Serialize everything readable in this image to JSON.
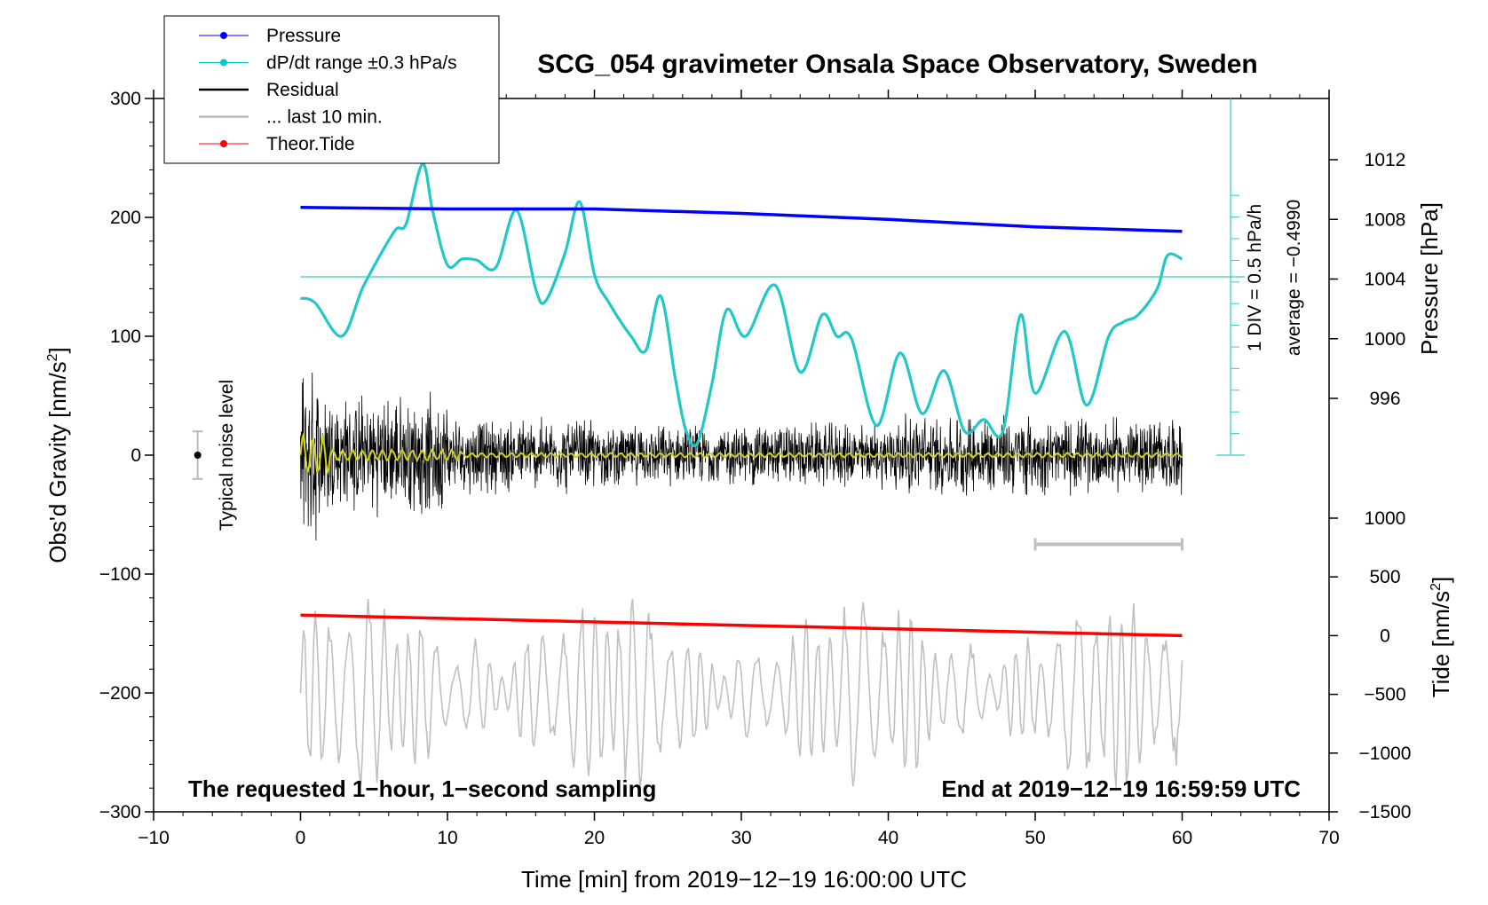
{
  "chart_data": {
    "type": "line",
    "title": "SCG_054 gravimeter Onsala Space Observatory, Sweden",
    "xlabel": "Time [min] from 2019−12−19 16:00:00 UTC",
    "ylabel_left": "Obs'd Gravity [nm/s",
    "ylabel_left_sup": "2",
    "ylabel_left_close": "]",
    "ylabel_right_pressure": "Pressure [hPa]",
    "ylabel_right_tide": "Tide [nm/s",
    "ylabel_right_tide_sup": "2",
    "ylabel_right_tide_close": "]",
    "xlim": [
      -10,
      70
    ],
    "ylim_left": [
      -300,
      300
    ],
    "xticks": [
      -10,
      0,
      10,
      20,
      30,
      40,
      50,
      60,
      70
    ],
    "xtick_labels": [
      "−10",
      "0",
      "10",
      "20",
      "30",
      "40",
      "50",
      "60",
      "70"
    ],
    "yticks_left": [
      300,
      200,
      100,
      0,
      -100,
      -200,
      -300
    ],
    "ytick_labels_left": [
      "300",
      "200",
      "100",
      "0",
      "−100",
      "−200",
      "−300"
    ],
    "pressure_ticks": [
      1012,
      1008,
      1004,
      1000,
      996
    ],
    "pressure_tick_labels": [
      "1012",
      "1008",
      "1004",
      "1000",
      "996"
    ],
    "tide_ticks": [
      1000,
      500,
      0,
      -500,
      -1000,
      -1500
    ],
    "tide_tick_labels": [
      "1000",
      "500",
      "0",
      "−500",
      "−1000",
      "−1500"
    ],
    "legend": [
      {
        "label": "Pressure",
        "color": "#0000ff",
        "marker": true
      },
      {
        "label": "dP/dt range ±0.3 hPa/s",
        "color": "#00c8c8",
        "marker": true
      },
      {
        "label": "Residual",
        "color": "#000000",
        "marker": false
      },
      {
        "label": "... last 10 min.",
        "color": "#bbbbbb",
        "marker": false
      },
      {
        "label": "Theor.Tide",
        "color": "#ff0000",
        "marker": true
      }
    ],
    "series": [
      {
        "name": "Pressure",
        "unit": "hPa",
        "color": "#0000ff",
        "x": [
          0,
          10,
          20,
          30,
          40,
          50,
          60
        ],
        "values": [
          1008.8,
          1008.7,
          1008.7,
          1008.4,
          1008.0,
          1007.5,
          1007.2
        ]
      },
      {
        "name": "dP/dt",
        "unit": "gravity-axis units",
        "color": "#20c8c8",
        "x": [
          0,
          1,
          2.8,
          4.2,
          5.5,
          6.5,
          7.2,
          8.3,
          9,
          10,
          11,
          12,
          13.3,
          14.7,
          16,
          16.7,
          18,
          19,
          20,
          21,
          22.5,
          23.5,
          24.5,
          25.5,
          26.2,
          27,
          28,
          29,
          30.3,
          32.3,
          34,
          35.5,
          36.5,
          37.5,
          39.2,
          40.8,
          42.3,
          43.8,
          45.2,
          46.5,
          47.8,
          49,
          50,
          52,
          53.5,
          55,
          56,
          57,
          58.3,
          59,
          60
        ],
        "values": [
          132,
          128,
          100,
          140,
          170,
          190,
          195,
          245,
          205,
          160,
          165,
          164,
          158,
          206,
          140,
          130,
          170,
          213,
          152,
          128,
          100,
          88,
          134,
          65,
          22,
          10,
          60,
          122,
          100,
          143,
          70,
          118,
          100,
          98,
          25,
          86,
          35,
          71,
          20,
          30,
          20,
          118,
          52,
          104,
          42,
          100,
          112,
          118,
          140,
          168,
          165
        ]
      },
      {
        "name": "Residual",
        "color": "#000000",
        "envelope": [
          55,
          35,
          28,
          30,
          38,
          35,
          25
        ]
      },
      {
        "name": "Residual (filtered)",
        "color": "#d0d020",
        "amplitude": [
          18,
          5,
          2
        ]
      },
      {
        "name": "Theor.Tide",
        "unit": "nm/s2",
        "color": "#ff0000",
        "x": [
          0,
          60
        ],
        "values": [
          175,
          0
        ]
      },
      {
        "name": "last 10 min",
        "color": "#c0c0c0",
        "range_min": [
          50,
          60
        ]
      }
    ],
    "pressure_avg_level": 150,
    "noise_level": {
      "x": -7,
      "y": 0,
      "halfwidth": 20
    },
    "dpdt_scale_label": "1 DIV = 0.5 hPa/h",
    "dpdt_average_label": "average = −0.4990",
    "noise_label": "Typical noise level",
    "bottom_left_text": "The requested 1−hour, 1−second sampling",
    "bottom_right_text": "End at 2019−12−19 16:59:59 UTC"
  }
}
